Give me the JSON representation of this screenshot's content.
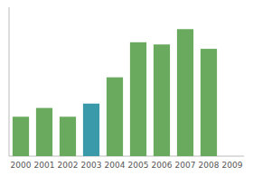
{
  "chart_data": {
    "type": "bar",
    "categories": [
      "2000",
      "2001",
      "2002",
      "2003",
      "2004",
      "2005",
      "2006",
      "2007",
      "2008",
      "2009"
    ],
    "values": [
      18,
      22,
      18,
      24,
      36,
      52,
      51,
      58,
      49,
      0
    ],
    "colors": [
      "#6aaa5e",
      "#6aaa5e",
      "#6aaa5e",
      "#3a9aaa",
      "#6aaa5e",
      "#6aaa5e",
      "#6aaa5e",
      "#6aaa5e",
      "#6aaa5e",
      "#6aaa5e"
    ],
    "ylim": [
      0,
      68
    ],
    "yticks": [],
    "grid": false,
    "tick_labels": "x"
  }
}
